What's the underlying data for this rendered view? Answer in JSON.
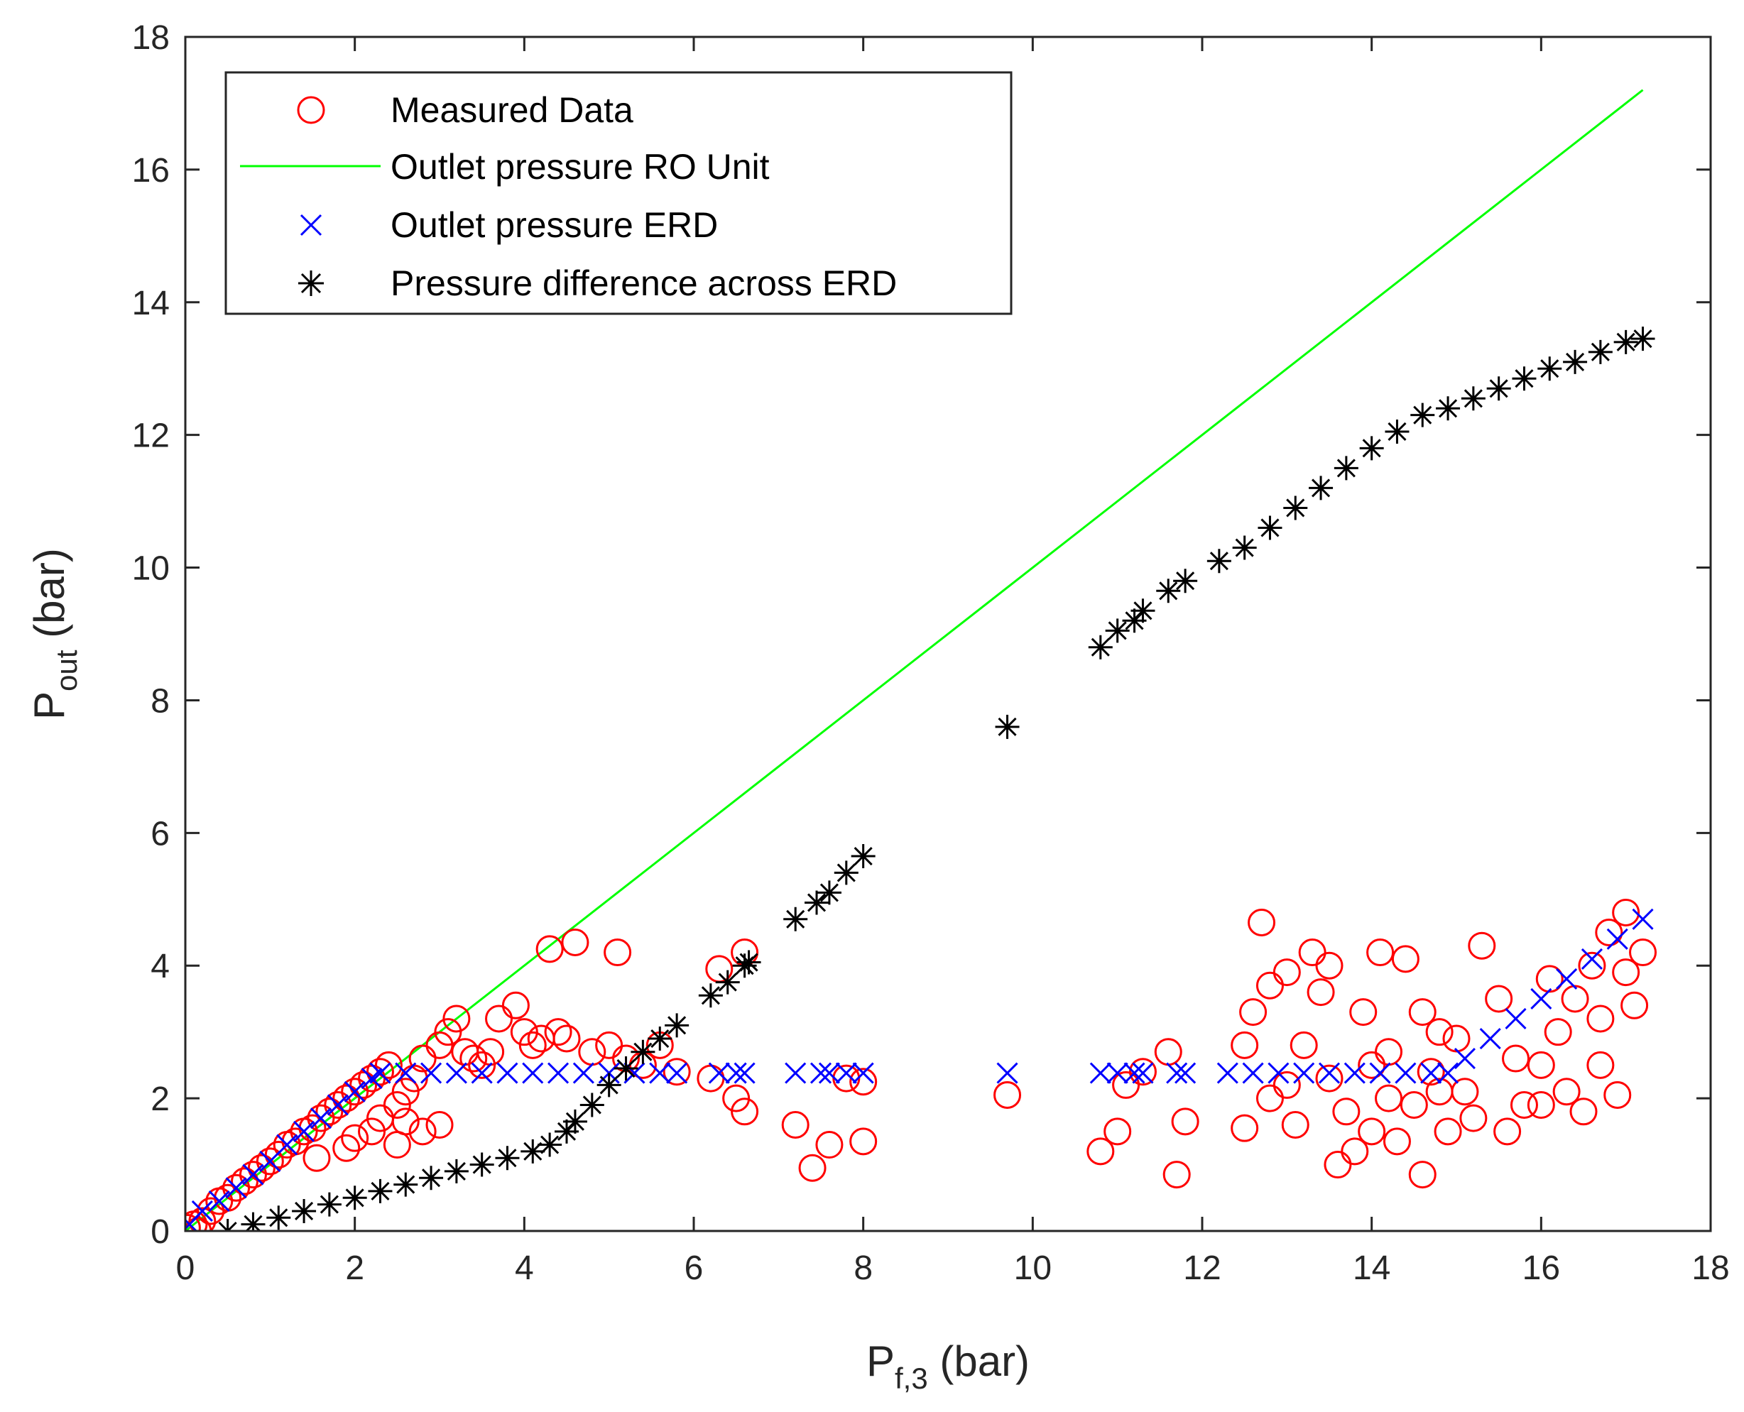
{
  "chart_data": {
    "type": "scatter",
    "xlabel": {
      "main": "P",
      "sub": "f,3",
      "unit": " (bar)"
    },
    "ylabel": {
      "main": "P",
      "sub": "out",
      "unit": " (bar)"
    },
    "xlim": [
      0,
      18
    ],
    "ylim": [
      0,
      18
    ],
    "xticks": [
      "0",
      "2",
      "4",
      "6",
      "8",
      "10",
      "12",
      "14",
      "16",
      "18"
    ],
    "yticks": [
      "0",
      "2",
      "4",
      "6",
      "8",
      "10",
      "12",
      "14",
      "16",
      "18"
    ],
    "grid": false,
    "legend_position": "top-left",
    "series": [
      {
        "name": "Measured Data",
        "marker": "circle",
        "color": "#ff0000",
        "points": [
          [
            0.02,
            0.05
          ],
          [
            0.1,
            0.1
          ],
          [
            0.2,
            0.15
          ],
          [
            0.3,
            0.3
          ],
          [
            0.4,
            0.45
          ],
          [
            0.5,
            0.5
          ],
          [
            0.6,
            0.65
          ],
          [
            0.7,
            0.75
          ],
          [
            0.8,
            0.85
          ],
          [
            0.9,
            0.95
          ],
          [
            1.0,
            1.05
          ],
          [
            1.1,
            1.15
          ],
          [
            1.2,
            1.3
          ],
          [
            1.3,
            1.35
          ],
          [
            1.4,
            1.5
          ],
          [
            1.5,
            1.55
          ],
          [
            1.6,
            1.7
          ],
          [
            1.7,
            1.8
          ],
          [
            1.8,
            1.9
          ],
          [
            1.9,
            2.0
          ],
          [
            2.0,
            2.1
          ],
          [
            2.1,
            2.2
          ],
          [
            2.2,
            2.3
          ],
          [
            2.3,
            2.4
          ],
          [
            2.4,
            2.5
          ],
          [
            0.15,
            0.0
          ],
          [
            1.55,
            1.1
          ],
          [
            1.9,
            1.25
          ],
          [
            2.0,
            1.4
          ],
          [
            2.2,
            1.5
          ],
          [
            2.3,
            1.7
          ],
          [
            2.5,
            1.9
          ],
          [
            2.6,
            2.1
          ],
          [
            2.7,
            2.3
          ],
          [
            2.8,
            2.6
          ],
          [
            3.0,
            2.8
          ],
          [
            3.1,
            3.0
          ],
          [
            3.2,
            3.2
          ],
          [
            3.3,
            2.7
          ],
          [
            3.0,
            1.6
          ],
          [
            2.8,
            1.5
          ],
          [
            2.5,
            1.3
          ],
          [
            2.6,
            1.65
          ],
          [
            3.5,
            2.5
          ],
          [
            3.7,
            3.2
          ],
          [
            3.9,
            3.4
          ],
          [
            4.0,
            3.0
          ],
          [
            4.1,
            2.8
          ],
          [
            4.2,
            2.9
          ],
          [
            4.3,
            4.25
          ],
          [
            4.6,
            4.35
          ],
          [
            4.5,
            2.9
          ],
          [
            4.8,
            2.7
          ],
          [
            5.0,
            2.8
          ],
          [
            5.1,
            4.2
          ],
          [
            5.2,
            2.6
          ],
          [
            5.4,
            2.5
          ],
          [
            5.6,
            2.8
          ],
          [
            5.8,
            2.4
          ],
          [
            3.4,
            2.6
          ],
          [
            3.6,
            2.7
          ],
          [
            4.4,
            3.0
          ],
          [
            6.3,
            3.95
          ],
          [
            6.6,
            4.2
          ],
          [
            6.2,
            2.3
          ],
          [
            6.5,
            2.0
          ],
          [
            6.6,
            1.8
          ],
          [
            7.2,
            1.6
          ],
          [
            7.4,
            0.95
          ],
          [
            7.6,
            1.3
          ],
          [
            8.0,
            1.35
          ],
          [
            7.8,
            2.3
          ],
          [
            8.0,
            2.25
          ],
          [
            9.7,
            2.05
          ],
          [
            10.8,
            1.2
          ],
          [
            11.0,
            1.5
          ],
          [
            11.1,
            2.2
          ],
          [
            11.3,
            2.4
          ],
          [
            11.6,
            2.7
          ],
          [
            11.7,
            0.85
          ],
          [
            11.8,
            1.65
          ],
          [
            12.5,
            1.55
          ],
          [
            12.7,
            4.65
          ],
          [
            12.6,
            3.3
          ],
          [
            12.8,
            3.7
          ],
          [
            13.0,
            3.9
          ],
          [
            13.3,
            4.2
          ],
          [
            13.5,
            4.0
          ],
          [
            13.4,
            3.6
          ],
          [
            13.2,
            2.8
          ],
          [
            13.0,
            2.2
          ],
          [
            12.8,
            2.0
          ],
          [
            13.1,
            1.6
          ],
          [
            13.6,
            1.0
          ],
          [
            13.8,
            1.2
          ],
          [
            14.0,
            1.5
          ],
          [
            14.2,
            2.0
          ],
          [
            14.1,
            4.2
          ],
          [
            14.4,
            4.1
          ],
          [
            14.6,
            3.3
          ],
          [
            14.8,
            3.0
          ],
          [
            14.7,
            2.4
          ],
          [
            14.5,
            1.9
          ],
          [
            14.3,
            1.35
          ],
          [
            14.6,
            0.85
          ],
          [
            14.9,
            1.5
          ],
          [
            15.1,
            2.1
          ],
          [
            15.3,
            4.3
          ],
          [
            15.5,
            3.5
          ],
          [
            15.6,
            1.5
          ],
          [
            15.8,
            1.9
          ],
          [
            16.0,
            2.5
          ],
          [
            16.2,
            3.0
          ],
          [
            16.4,
            3.5
          ],
          [
            16.5,
            1.8
          ],
          [
            16.6,
            4.0
          ],
          [
            16.7,
            2.5
          ],
          [
            16.8,
            4.5
          ],
          [
            16.9,
            2.05
          ],
          [
            17.0,
            4.8
          ],
          [
            17.1,
            3.4
          ],
          [
            17.2,
            4.2
          ],
          [
            13.9,
            3.3
          ],
          [
            14.2,
            2.7
          ],
          [
            15.0,
            2.9
          ],
          [
            15.7,
            2.6
          ],
          [
            16.1,
            3.8
          ],
          [
            16.3,
            2.1
          ],
          [
            13.5,
            2.3
          ],
          [
            14.0,
            2.5
          ],
          [
            12.5,
            2.8
          ],
          [
            13.7,
            1.8
          ],
          [
            15.2,
            1.7
          ],
          [
            16.0,
            1.9
          ],
          [
            14.8,
            2.1
          ],
          [
            16.7,
            3.2
          ],
          [
            17.0,
            3.9
          ]
        ]
      },
      {
        "name": "Outlet pressure RO Unit",
        "marker": "line",
        "color": "#00ff00",
        "points": [
          [
            0.0,
            0.0
          ],
          [
            17.2,
            17.2
          ]
        ]
      },
      {
        "name": "Outlet pressure ERD",
        "marker": "x",
        "color": "#0000ff",
        "points": [
          [
            0.05,
            0.1
          ],
          [
            0.2,
            0.3
          ],
          [
            0.4,
            0.45
          ],
          [
            0.6,
            0.65
          ],
          [
            0.8,
            0.85
          ],
          [
            1.0,
            1.05
          ],
          [
            1.2,
            1.3
          ],
          [
            1.4,
            1.5
          ],
          [
            1.6,
            1.7
          ],
          [
            1.8,
            1.9
          ],
          [
            2.0,
            2.1
          ],
          [
            2.2,
            2.3
          ],
          [
            2.3,
            2.38
          ],
          [
            2.6,
            2.38
          ],
          [
            2.9,
            2.38
          ],
          [
            3.2,
            2.38
          ],
          [
            3.5,
            2.38
          ],
          [
            3.8,
            2.38
          ],
          [
            4.1,
            2.38
          ],
          [
            4.4,
            2.38
          ],
          [
            4.7,
            2.38
          ],
          [
            5.0,
            2.38
          ],
          [
            5.3,
            2.38
          ],
          [
            5.6,
            2.38
          ],
          [
            5.8,
            2.38
          ],
          [
            6.3,
            2.38
          ],
          [
            6.5,
            2.38
          ],
          [
            6.6,
            2.38
          ],
          [
            7.2,
            2.38
          ],
          [
            7.5,
            2.38
          ],
          [
            7.6,
            2.38
          ],
          [
            7.8,
            2.38
          ],
          [
            8.0,
            2.38
          ],
          [
            9.7,
            2.38
          ],
          [
            10.8,
            2.38
          ],
          [
            11.0,
            2.38
          ],
          [
            11.2,
            2.38
          ],
          [
            11.3,
            2.38
          ],
          [
            11.7,
            2.38
          ],
          [
            11.8,
            2.38
          ],
          [
            12.3,
            2.38
          ],
          [
            12.6,
            2.38
          ],
          [
            12.9,
            2.38
          ],
          [
            13.2,
            2.38
          ],
          [
            13.5,
            2.38
          ],
          [
            13.8,
            2.38
          ],
          [
            14.1,
            2.38
          ],
          [
            14.4,
            2.38
          ],
          [
            14.7,
            2.38
          ],
          [
            14.9,
            2.38
          ],
          [
            15.1,
            2.6
          ],
          [
            15.4,
            2.9
          ],
          [
            15.7,
            3.2
          ],
          [
            16.0,
            3.5
          ],
          [
            16.3,
            3.8
          ],
          [
            16.6,
            4.1
          ],
          [
            16.9,
            4.4
          ],
          [
            17.2,
            4.7
          ]
        ]
      },
      {
        "name": "Pressure difference across ERD",
        "marker": "asterisk",
        "color": "#000000",
        "points": [
          [
            0.5,
            0.0
          ],
          [
            0.8,
            0.1
          ],
          [
            1.1,
            0.2
          ],
          [
            1.4,
            0.3
          ],
          [
            1.7,
            0.4
          ],
          [
            2.0,
            0.5
          ],
          [
            2.3,
            0.6
          ],
          [
            2.6,
            0.7
          ],
          [
            2.9,
            0.8
          ],
          [
            3.2,
            0.9
          ],
          [
            3.5,
            1.0
          ],
          [
            3.8,
            1.1
          ],
          [
            4.1,
            1.2
          ],
          [
            4.3,
            1.3
          ],
          [
            4.5,
            1.5
          ],
          [
            4.6,
            1.65
          ],
          [
            4.8,
            1.9
          ],
          [
            5.0,
            2.2
          ],
          [
            5.2,
            2.45
          ],
          [
            5.4,
            2.7
          ],
          [
            5.6,
            2.9
          ],
          [
            5.8,
            3.1
          ],
          [
            6.2,
            3.55
          ],
          [
            6.4,
            3.75
          ],
          [
            6.6,
            4.0
          ],
          [
            6.65,
            4.05
          ],
          [
            7.2,
            4.7
          ],
          [
            7.45,
            4.95
          ],
          [
            7.6,
            5.1
          ],
          [
            7.8,
            5.4
          ],
          [
            8.0,
            5.65
          ],
          [
            9.7,
            7.6
          ],
          [
            10.8,
            8.8
          ],
          [
            11.0,
            9.05
          ],
          [
            11.2,
            9.2
          ],
          [
            11.3,
            9.35
          ],
          [
            11.6,
            9.65
          ],
          [
            11.8,
            9.8
          ],
          [
            12.2,
            10.1
          ],
          [
            12.5,
            10.3
          ],
          [
            12.8,
            10.6
          ],
          [
            13.1,
            10.9
          ],
          [
            13.4,
            11.2
          ],
          [
            13.7,
            11.5
          ],
          [
            14.0,
            11.8
          ],
          [
            14.3,
            12.05
          ],
          [
            14.6,
            12.3
          ],
          [
            14.9,
            12.4
          ],
          [
            15.2,
            12.55
          ],
          [
            15.5,
            12.7
          ],
          [
            15.8,
            12.85
          ],
          [
            16.1,
            13.0
          ],
          [
            16.4,
            13.1
          ],
          [
            16.7,
            13.25
          ],
          [
            17.0,
            13.4
          ],
          [
            17.2,
            13.45
          ]
        ]
      }
    ]
  }
}
